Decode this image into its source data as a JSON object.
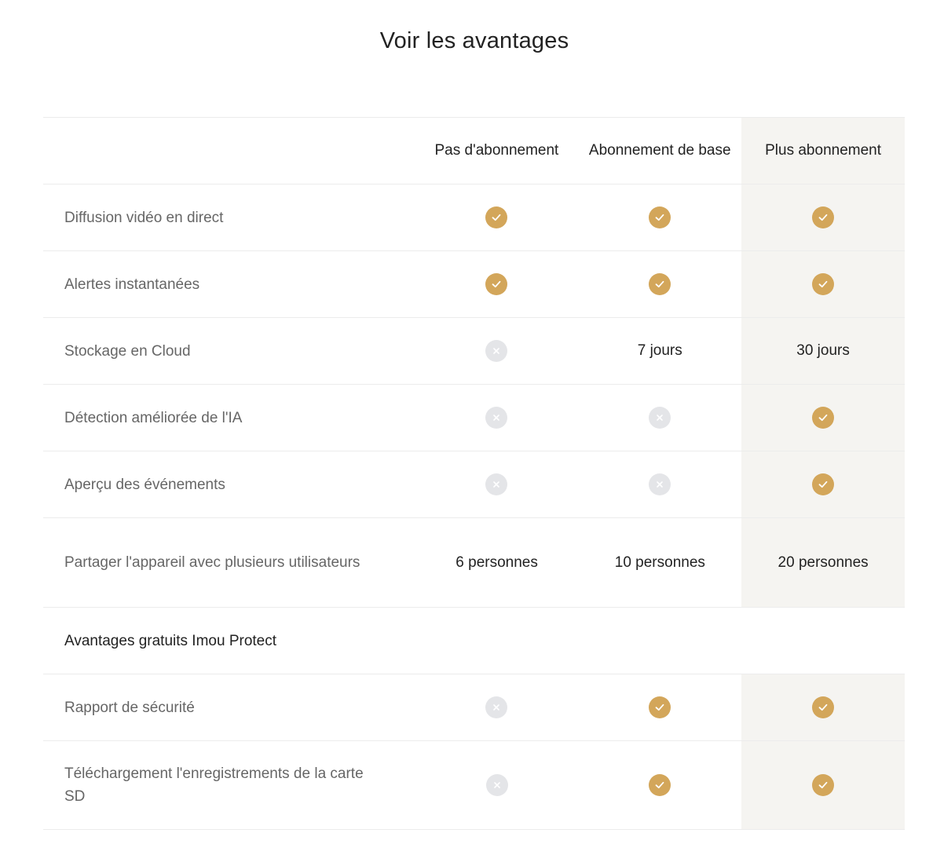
{
  "title": "Voir les avantages",
  "columns": [
    "Pas d'abonnement",
    "Abonnement de base",
    "Plus abonnement"
  ],
  "rows": [
    {
      "label": "Diffusion vidéo en direct",
      "values": [
        "check",
        "check",
        "check"
      ]
    },
    {
      "label": "Alertes instantanées",
      "values": [
        "check",
        "check",
        "check"
      ]
    },
    {
      "label": "Stockage en Cloud",
      "values": [
        "cross",
        "7 jours",
        "30 jours"
      ]
    },
    {
      "label": "Détection améliorée de l'IA",
      "values": [
        "cross",
        "cross",
        "check"
      ]
    },
    {
      "label": "Aperçu des événements",
      "values": [
        "cross",
        "cross",
        "check"
      ]
    },
    {
      "label": "Partager l'appareil avec plusieurs utilisateurs",
      "values": [
        "6 personnes",
        "10 personnes",
        "20 personnes"
      ]
    }
  ],
  "section_title": "Avantages gratuits Imou Protect",
  "section_rows": [
    {
      "label": "Rapport de sécurité",
      "values": [
        "cross",
        "check",
        "check"
      ]
    },
    {
      "label": "Téléchargement l'enregistrements de la carte SD",
      "values": [
        "cross",
        "check",
        "check"
      ]
    }
  ],
  "colors": {
    "check": "#d3a65a",
    "cross": "#e4e5e8",
    "highlight_column": "#f5f4f1"
  },
  "icons": {
    "check": "check-circle-icon",
    "cross": "cross-circle-icon"
  }
}
